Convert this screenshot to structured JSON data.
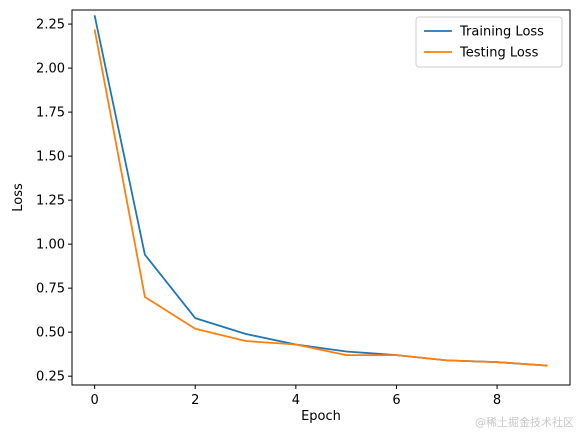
{
  "chart_data": {
    "type": "line",
    "xlabel": "Epoch",
    "ylabel": "Loss",
    "xlim": [
      -0.45,
      9.45
    ],
    "ylim": [
      0.2,
      2.33
    ],
    "xticks": [
      0,
      2,
      4,
      6,
      8
    ],
    "yticks": [
      0.25,
      0.5,
      0.75,
      1.0,
      1.25,
      1.5,
      1.75,
      2.0,
      2.25
    ],
    "grid": false,
    "legend_position": "upper right",
    "x": [
      0,
      1,
      2,
      3,
      4,
      5,
      6,
      7,
      8,
      9
    ],
    "series": [
      {
        "name": "Training Loss",
        "color": "#1f77b4",
        "values": [
          2.3,
          0.94,
          0.58,
          0.49,
          0.43,
          0.39,
          0.37,
          0.34,
          0.33,
          0.31
        ]
      },
      {
        "name": "Testing Loss",
        "color": "#ff7f0e",
        "values": [
          2.22,
          0.7,
          0.52,
          0.45,
          0.43,
          0.37,
          0.37,
          0.34,
          0.33,
          0.31
        ]
      }
    ]
  },
  "watermark": "@稀土掘金技术社区"
}
